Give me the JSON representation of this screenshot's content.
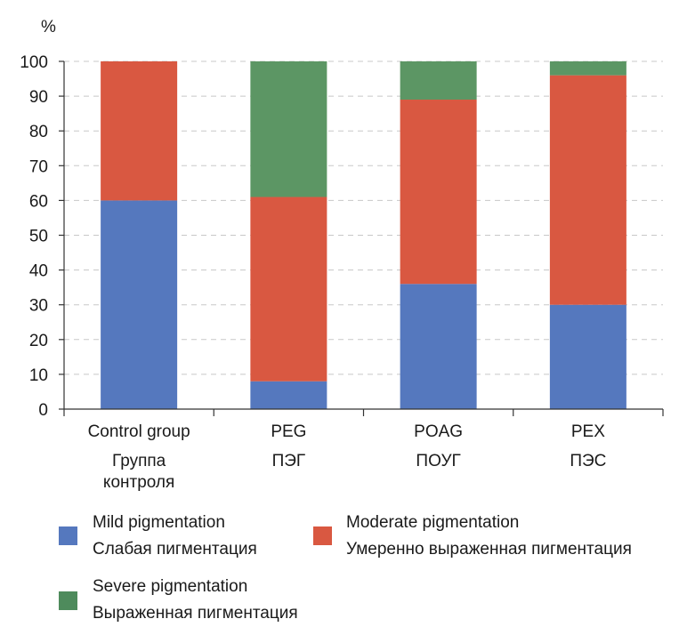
{
  "chart_data": {
    "type": "bar",
    "stacked": true,
    "y_unit_label": "%",
    "ylim": [
      0,
      100
    ],
    "yticks": [
      0,
      10,
      20,
      30,
      40,
      50,
      60,
      70,
      80,
      90,
      100
    ],
    "grid": "horizontal dashed",
    "categories": [
      {
        "en": "Control group",
        "ru": "Группа контроля",
        "ru_lines": [
          "Группа",
          "контроля"
        ]
      },
      {
        "en": "PEG",
        "ru": "ПЭГ",
        "ru_lines": [
          "ПЭГ"
        ]
      },
      {
        "en": "POAG",
        "ru": "ПОУГ",
        "ru_lines": [
          "ПОУГ"
        ]
      },
      {
        "en": "PEX",
        "ru": "ПЭС",
        "ru_lines": [
          "ПЭС"
        ]
      }
    ],
    "series": [
      {
        "name_en": "Mild pigmentation",
        "name_ru": "Слабая пигментация",
        "color": "#5578BE",
        "values": [
          60,
          8,
          36,
          30
        ]
      },
      {
        "name_en": "Moderate pigmentation",
        "name_ru": "Умеренно выраженная пигментация",
        "color": "#D95841",
        "values": [
          40,
          53,
          53,
          66
        ]
      },
      {
        "name_en": "Severe pigmentation",
        "name_ru": "Выраженная пигментация",
        "color": "#5C9664",
        "values": [
          0,
          39,
          11,
          4
        ]
      }
    ],
    "legend_position": "bottom"
  }
}
